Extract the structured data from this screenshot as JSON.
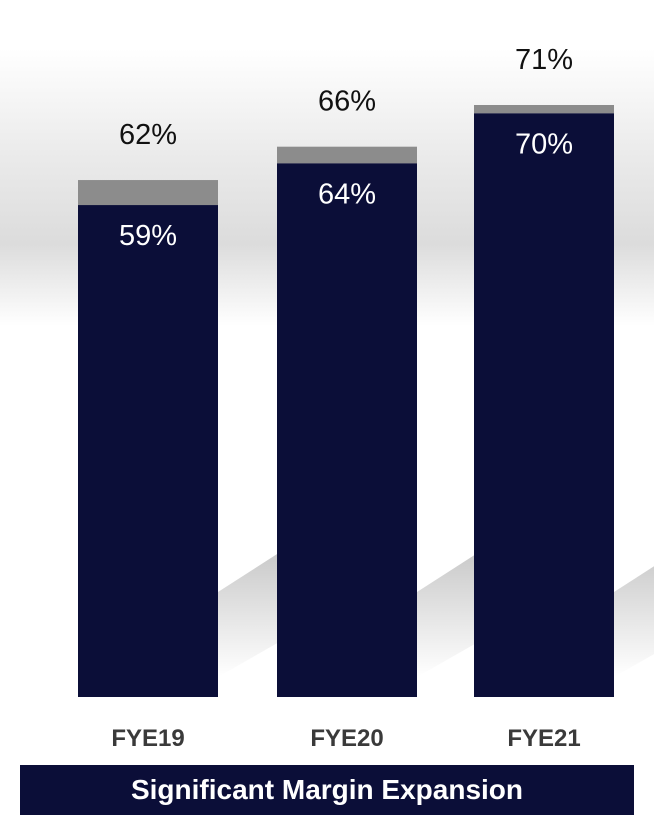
{
  "chart_data": {
    "type": "bar",
    "categories": [
      "FYE19",
      "FYE20",
      "FYE21"
    ],
    "series": [
      {
        "values": [
          59,
          64,
          70
        ]
      },
      {
        "values": [
          62,
          66,
          71
        ]
      }
    ],
    "inner_labels": [
      "59%",
      "64%",
      "70%"
    ],
    "outer_labels": [
      "62%",
      "66%",
      "71%"
    ],
    "ylim": [
      0,
      71
    ],
    "grid": false,
    "colors": {
      "inner": "#0b0e38",
      "outer": "#8c8c8c",
      "banner": "#0b0e38"
    }
  },
  "banner": {
    "text": "Significant Margin Expansion"
  }
}
